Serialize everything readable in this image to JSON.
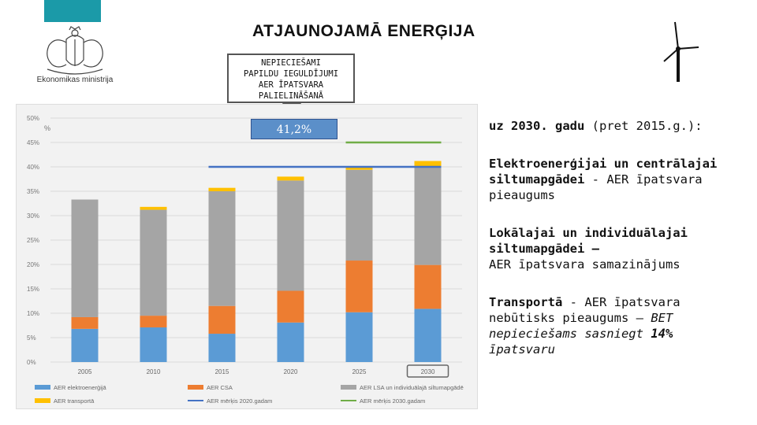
{
  "header": {
    "title": "ATJAUNOJAMĀ ENERĢIJA",
    "ministry": "Ekonomikas ministrija",
    "callout_lines": [
      "NEPIECIEŠAMI",
      "PAPILDU IEGULDĪJUMI",
      "AER ĪPATSVARA",
      "PALIELINĀŠANĀ"
    ],
    "target_value": "41,2%"
  },
  "right_panel": {
    "intro_bold": "uz 2030. gadu",
    "intro_rest": " (pret 2015.g.):",
    "p1_bold": "Elektroenerģijai un centrālajai siltumapgādei",
    "p1_rest": " - AER īpatsvara pieaugums",
    "p2_bold": "Lokālajai un individuālajai siltumapgādei –",
    "p2_rest": "AER īpatsvara samazinājums",
    "p3_bold": "Transportā",
    "p3_mid": " - AER īpatsvara nebūtisks pieaugums – ",
    "p3_italic1": "BET nepieciešams sasniegt ",
    "p3_bold_italic": "14%",
    "p3_italic2": " īpatsvaru"
  },
  "chart_data": {
    "type": "bar",
    "stacked": true,
    "unit_label": "%",
    "categories": [
      "2005",
      "2010",
      "2015",
      "2020",
      "2025",
      "2030"
    ],
    "highlighted_category": "2030",
    "ylim": [
      0,
      50
    ],
    "yticks": [
      "0%",
      "5%",
      "10%",
      "15%",
      "20%",
      "25%",
      "30%",
      "35%",
      "40%",
      "45%",
      "50%"
    ],
    "series": [
      {
        "name": "AER elektroenerģijā",
        "color": "#5b9bd5",
        "values": [
          6.8,
          7.1,
          5.8,
          8.1,
          10.2,
          10.9
        ]
      },
      {
        "name": "AER CSA",
        "color": "#ed7d31",
        "values": [
          2.4,
          2.4,
          5.7,
          6.5,
          10.6,
          9.0
        ]
      },
      {
        "name": "AER LSA un individuālajā siltumapgādē",
        "color": "#a5a5a5",
        "values": [
          24.1,
          21.7,
          23.5,
          22.6,
          18.6,
          20.2
        ]
      },
      {
        "name": "AER transportā",
        "color": "#ffc000",
        "values": [
          0.0,
          0.6,
          0.7,
          0.8,
          0.6,
          1.1
        ]
      }
    ],
    "reference_lines": [
      {
        "name": "AER mērķis 2020.gadam",
        "color": "#4472c4",
        "value": 40,
        "from": "2015",
        "to": "2030"
      },
      {
        "name": "AER mērķis 2030.gadam",
        "color": "#70ad47",
        "value": 45,
        "from": "2025",
        "to": "2030"
      }
    ],
    "grid": true,
    "legend_position": "bottom"
  }
}
